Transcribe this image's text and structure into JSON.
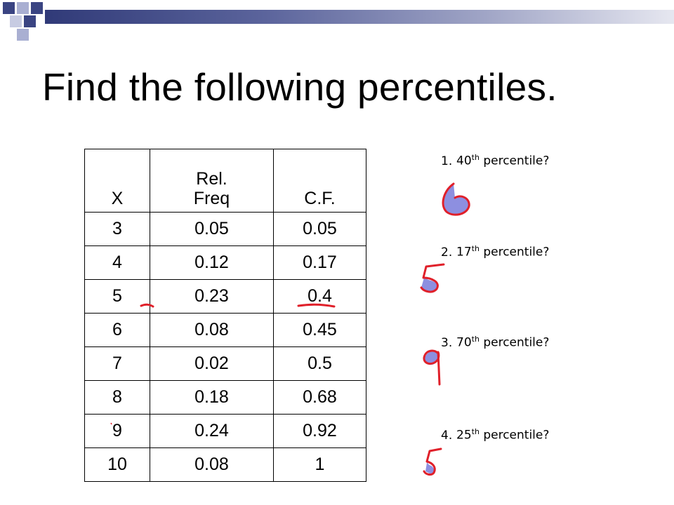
{
  "title": "Find the following percentiles.",
  "table": {
    "headers": [
      "X",
      "Rel. Freq",
      "C.F."
    ],
    "rows": [
      [
        "3",
        "0.05",
        "0.05"
      ],
      [
        "4",
        "0.12",
        "0.17"
      ],
      [
        "5",
        "0.23",
        "0.4"
      ],
      [
        "6",
        "0.08",
        "0.45"
      ],
      [
        "7",
        "0.02",
        "0.5"
      ],
      [
        "8",
        "0.18",
        "0.68"
      ],
      [
        "9",
        "0.24",
        "0.92"
      ],
      [
        "10",
        "0.08",
        "1"
      ]
    ]
  },
  "questions": [
    {
      "num": "1.",
      "ordinal": "40",
      "suffix": "th",
      "text": "percentile?",
      "answer": "6"
    },
    {
      "num": "2.",
      "ordinal": "17",
      "suffix": "th",
      "text": "percentile?",
      "answer": "5"
    },
    {
      "num": "3.",
      "ordinal": "70",
      "suffix": "th",
      "text": "percentile?",
      "answer": "9"
    },
    {
      "num": "4.",
      "ordinal": "25",
      "suffix": "th",
      "text": "percentile?",
      "answer": "5"
    }
  ],
  "colors": {
    "ink_red": "#e0202a",
    "ink_fill": "#8d8fe0",
    "header_dark": "#303a78",
    "header_light": "#a9afd2"
  }
}
